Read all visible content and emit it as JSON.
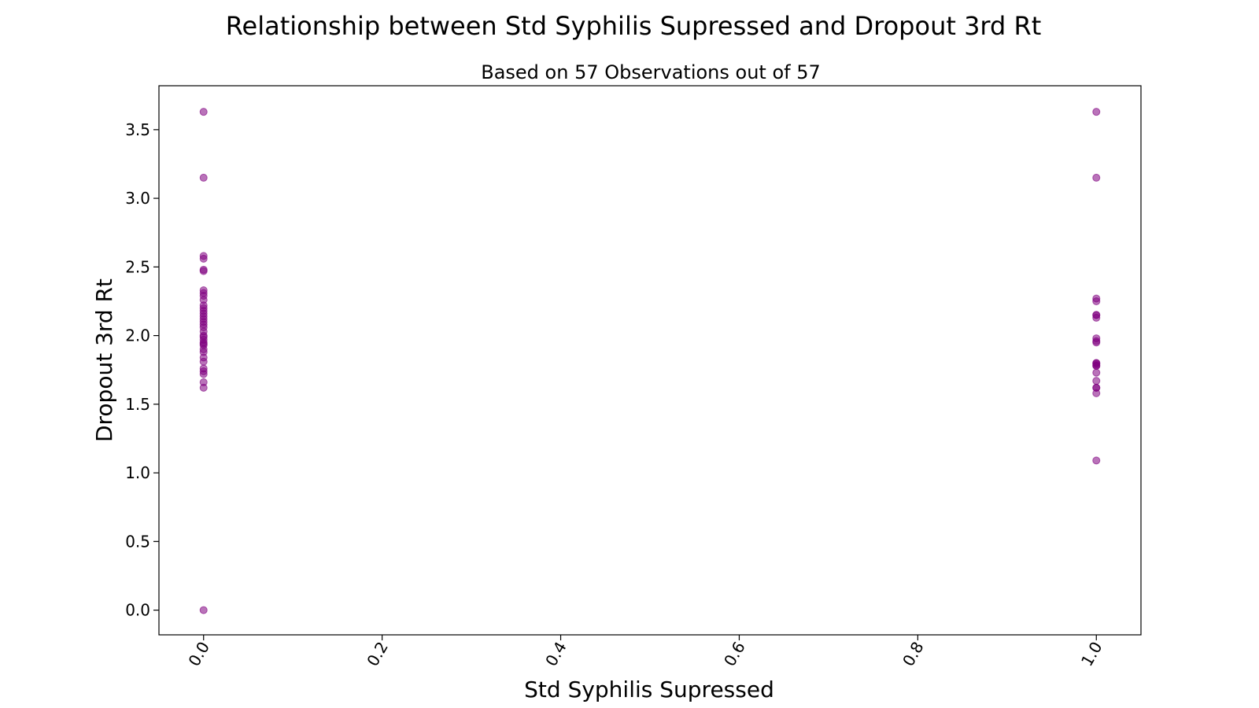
{
  "chart_data": {
    "type": "scatter",
    "title": "Relationship between Std Syphilis Supressed and Dropout 3rd Rt",
    "subtitle": "Based on 57 Observations out of 57",
    "xlabel": "Std Syphilis Supressed",
    "ylabel": "Dropout 3rd Rt",
    "xlim": [
      -0.05,
      1.05
    ],
    "ylim": [
      -0.18,
      3.82
    ],
    "xticks": [
      "0.0",
      "0.2",
      "0.4",
      "0.6",
      "0.8",
      "1.0"
    ],
    "yticks": [
      "0.0",
      "0.5",
      "1.0",
      "1.5",
      "2.0",
      "2.5",
      "3.0",
      "3.5"
    ],
    "grid": false,
    "marker_color": "#800080",
    "marker_alpha": 0.55,
    "points": [
      {
        "x": 0,
        "y": 3.63
      },
      {
        "x": 0,
        "y": 3.15
      },
      {
        "x": 0,
        "y": 2.58
      },
      {
        "x": 0,
        "y": 2.56
      },
      {
        "x": 0,
        "y": 2.48
      },
      {
        "x": 0,
        "y": 2.47
      },
      {
        "x": 0,
        "y": 2.33
      },
      {
        "x": 0,
        "y": 2.31
      },
      {
        "x": 0,
        "y": 2.29
      },
      {
        "x": 0,
        "y": 2.26
      },
      {
        "x": 0,
        "y": 2.2
      },
      {
        "x": 0,
        "y": 2.18
      },
      {
        "x": 0,
        "y": 2.16
      },
      {
        "x": 0,
        "y": 2.12
      },
      {
        "x": 0,
        "y": 2.1
      },
      {
        "x": 0,
        "y": 2.08
      },
      {
        "x": 0,
        "y": 2.06
      },
      {
        "x": 0,
        "y": 2.03
      },
      {
        "x": 0,
        "y": 2.0
      },
      {
        "x": 0,
        "y": 1.97
      },
      {
        "x": 0,
        "y": 1.95
      },
      {
        "x": 0,
        "y": 1.93
      },
      {
        "x": 0,
        "y": 1.9
      },
      {
        "x": 0,
        "y": 1.88
      },
      {
        "x": 0,
        "y": 1.84
      },
      {
        "x": 0,
        "y": 1.81
      },
      {
        "x": 0,
        "y": 1.76
      },
      {
        "x": 0,
        "y": 1.74
      },
      {
        "x": 0,
        "y": 1.72
      },
      {
        "x": 0,
        "y": 1.66
      },
      {
        "x": 0,
        "y": 1.62
      },
      {
        "x": 0,
        "y": 1.94
      },
      {
        "x": 0,
        "y": 2.14
      },
      {
        "x": 0,
        "y": 2.22
      },
      {
        "x": 0,
        "y": 1.99
      },
      {
        "x": 0,
        "y": 0.0
      },
      {
        "x": 1,
        "y": 3.63
      },
      {
        "x": 1,
        "y": 3.15
      },
      {
        "x": 1,
        "y": 2.27
      },
      {
        "x": 1,
        "y": 2.25
      },
      {
        "x": 1,
        "y": 2.15
      },
      {
        "x": 1,
        "y": 2.13
      },
      {
        "x": 1,
        "y": 1.98
      },
      {
        "x": 1,
        "y": 1.95
      },
      {
        "x": 1,
        "y": 1.8
      },
      {
        "x": 1,
        "y": 1.79
      },
      {
        "x": 1,
        "y": 1.78
      },
      {
        "x": 1,
        "y": 1.73
      },
      {
        "x": 1,
        "y": 1.67
      },
      {
        "x": 1,
        "y": 1.62
      },
      {
        "x": 1,
        "y": 1.58
      },
      {
        "x": 1,
        "y": 1.09
      },
      {
        "x": 1,
        "y": 1.8
      },
      {
        "x": 1,
        "y": 2.15
      },
      {
        "x": 1,
        "y": 1.96
      },
      {
        "x": 1,
        "y": 1.78
      },
      {
        "x": 1,
        "y": 1.62
      }
    ]
  }
}
